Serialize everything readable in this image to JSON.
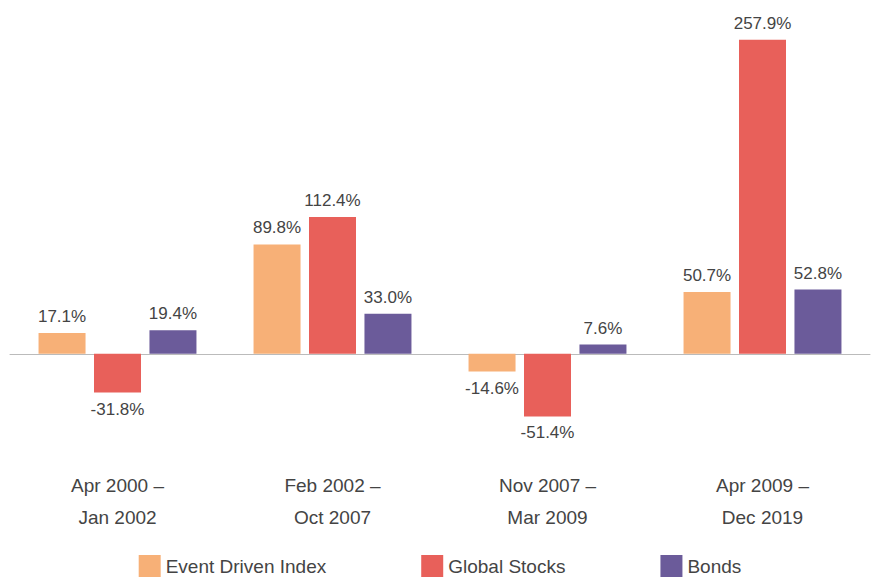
{
  "chart_data": {
    "type": "bar",
    "categories": [
      "Apr 2000 –\nJan 2002",
      "Feb 2002 –\nOct 2007",
      "Nov 2007 –\nMar 2009",
      "Apr 2009 –\nDec 2019"
    ],
    "series": [
      {
        "name": "Event Driven Index",
        "color": "#f7b077",
        "values": [
          17.1,
          89.8,
          -14.6,
          50.7
        ],
        "value_labels": [
          "17.1%",
          "89.8%",
          "-14.6%",
          "50.7%"
        ]
      },
      {
        "name": "Global Stocks",
        "color": "#e8605a",
        "values": [
          -31.8,
          112.4,
          -51.4,
          257.9
        ],
        "value_labels": [
          "-31.8%",
          "112.4%",
          "-51.4%",
          "257.9%"
        ]
      },
      {
        "name": "Bonds",
        "color": "#6b5b9a",
        "values": [
          19.4,
          33.0,
          7.6,
          52.8
        ],
        "value_labels": [
          "19.4%",
          "33.0%",
          "7.6%",
          "52.8%"
        ]
      }
    ],
    "ylim": [
      -65,
      270
    ],
    "grid": false,
    "legend": "bottom",
    "data_labels": true,
    "tick_labels": "x"
  }
}
